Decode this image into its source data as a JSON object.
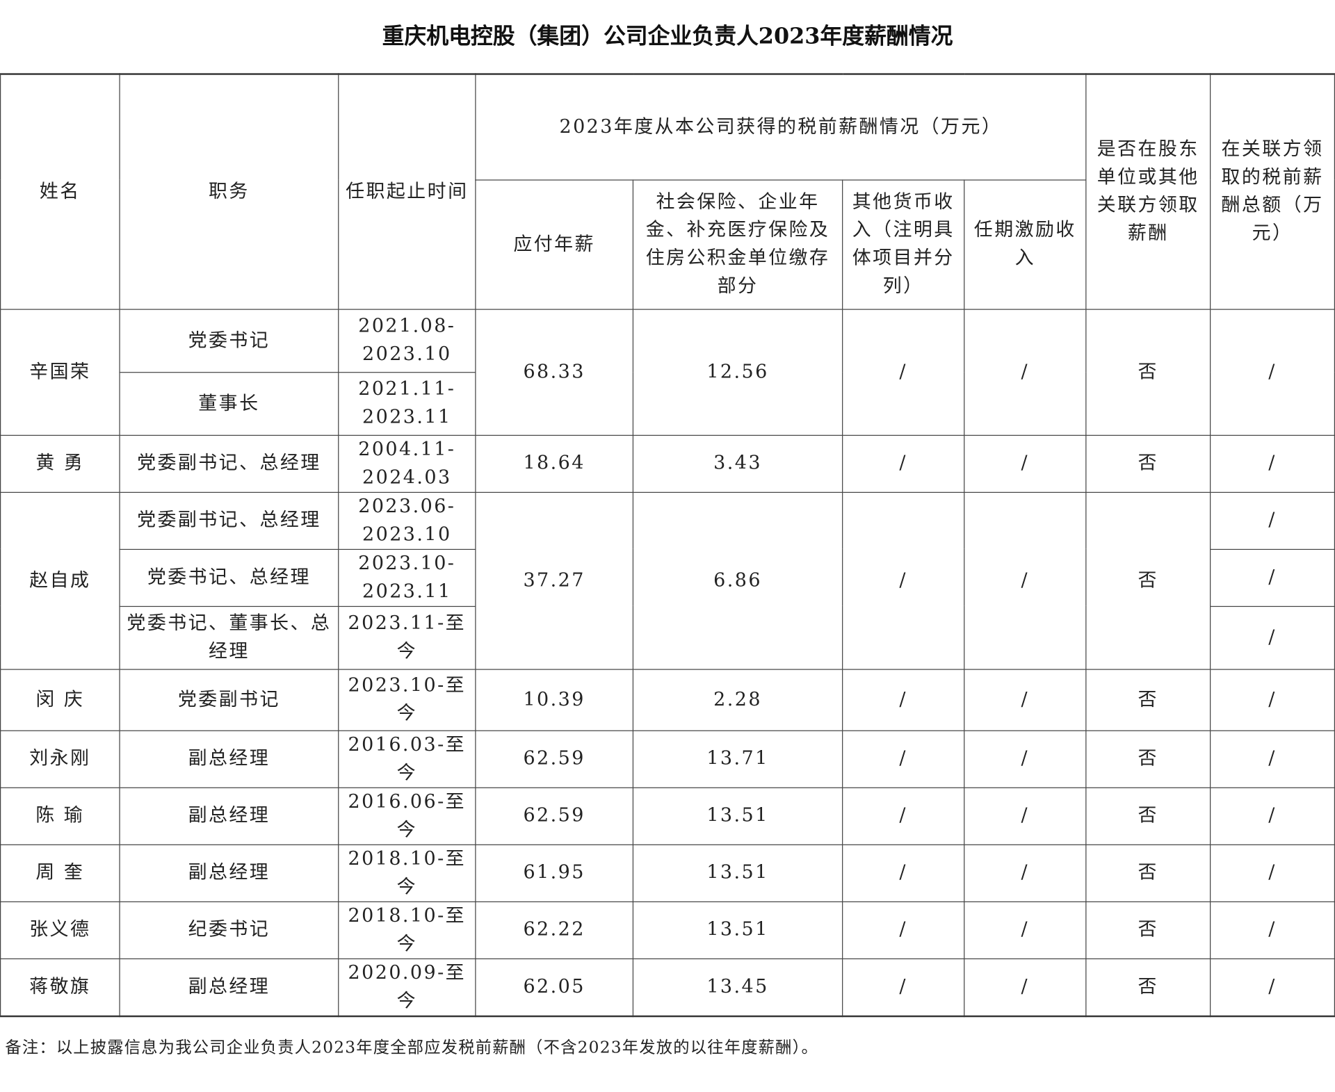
{
  "title": "重庆机电控股（集团）公司企业负责人2023年度薪酬情况",
  "headers": {
    "name": "姓名",
    "position": "职务",
    "tenure": "任职起止时间",
    "group": "2023年度从本公司获得的税前薪酬情况（万元）",
    "salary": "应付年薪",
    "insurance": "社会保险、企业年金、补充医疗保险及住房公积金单位缴存部分",
    "other": "其他货币收入（注明具体项目并分列）",
    "incentive": "任期激励收入",
    "related": "是否在股东单位或其他关联方领取薪酬",
    "related_total": "在关联方领取的税前薪酬总额（万元）"
  },
  "rows": [
    {
      "name": "辛国荣",
      "roles": [
        {
          "position": "党委书记",
          "tenure": "2021.08-2023.10"
        },
        {
          "position": "董事长",
          "tenure": "2021.11-2023.11"
        }
      ],
      "salary": "68.33",
      "insurance": "12.56",
      "other": "/",
      "incentive": "/",
      "related": "否",
      "related_total": "/"
    },
    {
      "name": "黄  勇",
      "position": "党委副书记、总经理",
      "tenure": "2004.11-2024.03",
      "salary": "18.64",
      "insurance": "3.43",
      "other": "/",
      "incentive": "/",
      "related": "否",
      "related_total": "/"
    },
    {
      "name": "赵自成",
      "roles": [
        {
          "position": "党委副书记、总经理",
          "tenure": "2023.06-2023.10",
          "related_total": "/"
        },
        {
          "position": "党委书记、总经理",
          "tenure": "2023.10-2023.11",
          "related_total": "/"
        },
        {
          "position": "党委书记、董事长、总经理",
          "tenure": "2023.11-至今",
          "related_total": "/"
        }
      ],
      "salary": "37.27",
      "insurance": "6.86",
      "other": "/",
      "incentive": "/",
      "related": "否"
    },
    {
      "name": "闵  庆",
      "position": "党委副书记",
      "tenure": "2023.10-至今",
      "salary": "10.39",
      "insurance": "2.28",
      "other": "/",
      "incentive": "/",
      "related": "否",
      "related_total": "/"
    },
    {
      "name": "刘永刚",
      "position": "副总经理",
      "tenure": "2016.03-至今",
      "salary": "62.59",
      "insurance": "13.71",
      "other": "/",
      "incentive": "/",
      "related": "否",
      "related_total": "/"
    },
    {
      "name": "陈  瑜",
      "position": "副总经理",
      "tenure": "2016.06-至今",
      "salary": "62.59",
      "insurance": "13.51",
      "other": "/",
      "incentive": "/",
      "related": "否",
      "related_total": "/"
    },
    {
      "name": "周  奎",
      "position": "副总经理",
      "tenure": "2018.10-至今",
      "salary": "61.95",
      "insurance": "13.51",
      "other": "/",
      "incentive": "/",
      "related": "否",
      "related_total": "/"
    },
    {
      "name": "张义德",
      "position": "纪委书记",
      "tenure": "2018.10-至今",
      "salary": "62.22",
      "insurance": "13.51",
      "other": "/",
      "incentive": "/",
      "related": "否",
      "related_total": "/"
    },
    {
      "name": "蒋敬旗",
      "position": "副总经理",
      "tenure": "2020.09-至今",
      "salary": "62.05",
      "insurance": "13.45",
      "other": "/",
      "incentive": "/",
      "related": "否",
      "related_total": "/"
    }
  ],
  "note": "备注：以上披露信息为我公司企业负责人2023年度全部应发税前薪酬（不含2023年发放的以往年度薪酬）。"
}
